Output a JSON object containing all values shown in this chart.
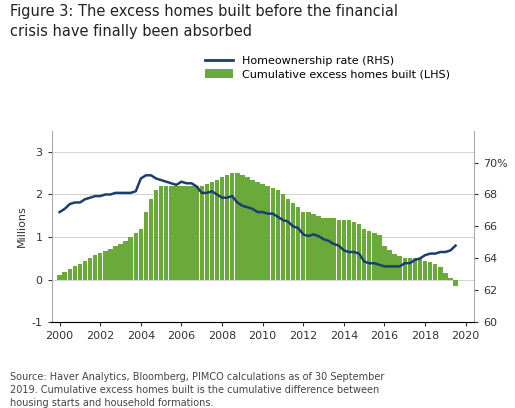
{
  "title": "Figure 3: The excess homes built before the financial\ncrisis have finally been absorbed",
  "legend_line": "Homeownership rate (RHS)",
  "legend_bar": "Cumulative excess homes built (LHS)",
  "ylabel_left": "Millions",
  "source_text": "Source: Haver Analytics, Bloomberg, PIMCO calculations as of 30 September\n2019. Cumulative excess homes built is the cumulative difference between\nhousing starts and household formations.",
  "bar_color": "#6aaa3a",
  "line_color": "#1a3f6f",
  "background_color": "#ffffff",
  "grid_color": "#cccccc",
  "years": [
    2000.0,
    2000.25,
    2000.5,
    2000.75,
    2001.0,
    2001.25,
    2001.5,
    2001.75,
    2002.0,
    2002.25,
    2002.5,
    2002.75,
    2003.0,
    2003.25,
    2003.5,
    2003.75,
    2004.0,
    2004.25,
    2004.5,
    2004.75,
    2005.0,
    2005.25,
    2005.5,
    2005.75,
    2006.0,
    2006.25,
    2006.5,
    2006.75,
    2007.0,
    2007.25,
    2007.5,
    2007.75,
    2008.0,
    2008.25,
    2008.5,
    2008.75,
    2009.0,
    2009.25,
    2009.5,
    2009.75,
    2010.0,
    2010.25,
    2010.5,
    2010.75,
    2011.0,
    2011.25,
    2011.5,
    2011.75,
    2012.0,
    2012.25,
    2012.5,
    2012.75,
    2013.0,
    2013.25,
    2013.5,
    2013.75,
    2014.0,
    2014.25,
    2014.5,
    2014.75,
    2015.0,
    2015.25,
    2015.5,
    2015.75,
    2016.0,
    2016.25,
    2016.5,
    2016.75,
    2017.0,
    2017.25,
    2017.5,
    2017.75,
    2018.0,
    2018.25,
    2018.5,
    2018.75,
    2019.0,
    2019.25,
    2019.5
  ],
  "bar_values": [
    0.12,
    0.18,
    0.25,
    0.32,
    0.38,
    0.45,
    0.52,
    0.58,
    0.63,
    0.68,
    0.73,
    0.78,
    0.83,
    0.9,
    1.0,
    1.1,
    1.2,
    1.6,
    1.9,
    2.1,
    2.2,
    2.2,
    2.2,
    2.2,
    2.2,
    2.2,
    2.2,
    2.2,
    2.2,
    2.25,
    2.3,
    2.35,
    2.4,
    2.45,
    2.5,
    2.5,
    2.45,
    2.4,
    2.35,
    2.3,
    2.25,
    2.2,
    2.15,
    2.1,
    2.0,
    1.9,
    1.8,
    1.7,
    1.6,
    1.6,
    1.55,
    1.5,
    1.45,
    1.45,
    1.45,
    1.4,
    1.4,
    1.4,
    1.35,
    1.3,
    1.2,
    1.15,
    1.1,
    1.05,
    0.8,
    0.7,
    0.6,
    0.55,
    0.5,
    0.5,
    0.5,
    0.5,
    0.45,
    0.42,
    0.38,
    0.3,
    0.15,
    0.05,
    -0.15
  ],
  "line_values": [
    66.9,
    67.1,
    67.4,
    67.5,
    67.5,
    67.7,
    67.8,
    67.9,
    67.9,
    68.0,
    68.0,
    68.1,
    68.1,
    68.1,
    68.1,
    68.2,
    69.0,
    69.2,
    69.2,
    69.0,
    68.9,
    68.8,
    68.7,
    68.6,
    68.8,
    68.7,
    68.7,
    68.5,
    68.1,
    68.1,
    68.2,
    68.0,
    67.8,
    67.8,
    67.9,
    67.5,
    67.3,
    67.2,
    67.1,
    66.9,
    66.9,
    66.8,
    66.8,
    66.6,
    66.4,
    66.3,
    66.0,
    65.9,
    65.5,
    65.4,
    65.5,
    65.4,
    65.2,
    65.1,
    64.9,
    64.8,
    64.5,
    64.4,
    64.4,
    64.3,
    63.8,
    63.7,
    63.7,
    63.6,
    63.5,
    63.5,
    63.5,
    63.5,
    63.7,
    63.7,
    63.9,
    64.0,
    64.2,
    64.3,
    64.3,
    64.4,
    64.4,
    64.5,
    64.8
  ],
  "xlim": [
    1999.6,
    2020.4
  ],
  "ylim_left": [
    -1,
    3.5
  ],
  "ylim_right": [
    60,
    72
  ],
  "yticks_left": [
    -1,
    0,
    1,
    2,
    3
  ],
  "yticks_right": [
    60,
    62,
    64,
    66,
    68,
    70
  ],
  "xticks": [
    2000,
    2002,
    2004,
    2006,
    2008,
    2010,
    2012,
    2014,
    2016,
    2018,
    2020
  ],
  "title_fontsize": 10.5,
  "axis_fontsize": 8,
  "legend_fontsize": 8,
  "source_fontsize": 7,
  "bar_width": 0.22
}
